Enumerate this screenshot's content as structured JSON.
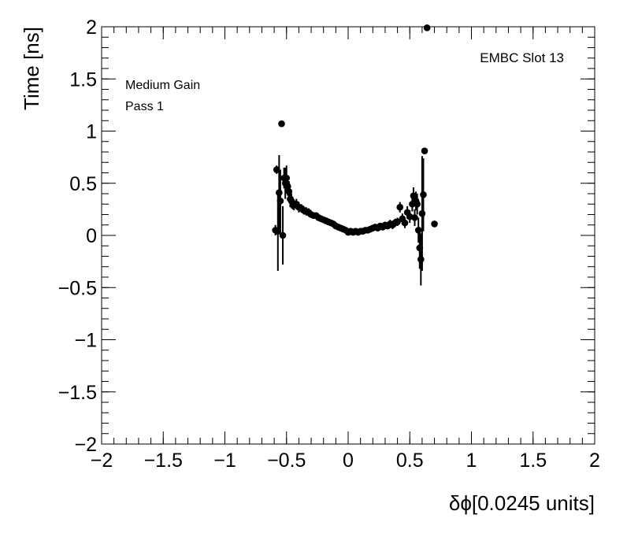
{
  "chart_data": {
    "type": "scatter",
    "title": "",
    "xlabel": "δϕ[0.0245 units]",
    "ylabel": "Time [ns]",
    "xlim": [
      -2,
      2
    ],
    "ylim": [
      -2,
      2
    ],
    "x_ticks": [
      -2,
      -1.5,
      -1,
      -0.5,
      0,
      0.5,
      1,
      1.5,
      2
    ],
    "y_ticks": [
      -2,
      -1.5,
      -1,
      -0.5,
      0,
      0.5,
      1,
      1.5,
      2
    ],
    "x_tick_labels": [
      "−2",
      "−1.5",
      "−1",
      "−0.5",
      "0",
      "0.5",
      "1",
      "1.5",
      "2"
    ],
    "y_tick_labels": [
      "−2",
      "−1.5",
      "−1",
      "−0.5",
      "0",
      "0.5",
      "1",
      "1.5",
      "2"
    ],
    "grid": false,
    "marker_color": "#000000",
    "annotations": {
      "gain": "Medium Gain",
      "pass": "Pass 1",
      "slot": "EMBC Slot 13"
    },
    "points": [
      {
        "x": -0.59,
        "y": 0.05,
        "err": 0.05
      },
      {
        "x": -0.58,
        "y": 0.63,
        "err": 0.04
      },
      {
        "x": -0.57,
        "y": 0.04,
        "err": 0.38
      },
      {
        "x": -0.56,
        "y": 0.41,
        "err": 0.36
      },
      {
        "x": -0.55,
        "y": 0.33,
        "err": 0.3
      },
      {
        "x": -0.54,
        "y": 1.07,
        "err": 0.03
      },
      {
        "x": -0.53,
        "y": 0.0,
        "err": 0.28
      },
      {
        "x": -0.52,
        "y": 0.55,
        "err": 0.1
      },
      {
        "x": -0.51,
        "y": 0.5,
        "err": 0.15
      },
      {
        "x": -0.5,
        "y": 0.55,
        "err": 0.12
      },
      {
        "x": -0.49,
        "y": 0.47,
        "err": 0.09
      },
      {
        "x": -0.48,
        "y": 0.42,
        "err": 0.1
      },
      {
        "x": -0.47,
        "y": 0.35,
        "err": 0.08
      },
      {
        "x": -0.46,
        "y": 0.33,
        "err": 0.07
      },
      {
        "x": -0.45,
        "y": 0.31,
        "err": 0.06
      },
      {
        "x": -0.44,
        "y": 0.29,
        "err": 0.05
      },
      {
        "x": -0.42,
        "y": 0.3,
        "err": 0.05
      },
      {
        "x": -0.4,
        "y": 0.27,
        "err": 0.05
      },
      {
        "x": -0.38,
        "y": 0.26,
        "err": 0.04
      },
      {
        "x": -0.36,
        "y": 0.24,
        "err": 0.04
      },
      {
        "x": -0.34,
        "y": 0.23,
        "err": 0.04
      },
      {
        "x": -0.32,
        "y": 0.22,
        "err": 0.04
      },
      {
        "x": -0.3,
        "y": 0.2,
        "err": 0.03
      },
      {
        "x": -0.28,
        "y": 0.19,
        "err": 0.03
      },
      {
        "x": -0.26,
        "y": 0.19,
        "err": 0.03
      },
      {
        "x": -0.24,
        "y": 0.17,
        "err": 0.03
      },
      {
        "x": -0.22,
        "y": 0.16,
        "err": 0.03
      },
      {
        "x": -0.2,
        "y": 0.15,
        "err": 0.03
      },
      {
        "x": -0.18,
        "y": 0.14,
        "err": 0.03
      },
      {
        "x": -0.16,
        "y": 0.13,
        "err": 0.03
      },
      {
        "x": -0.14,
        "y": 0.12,
        "err": 0.02
      },
      {
        "x": -0.12,
        "y": 0.11,
        "err": 0.02
      },
      {
        "x": -0.1,
        "y": 0.09,
        "err": 0.02
      },
      {
        "x": -0.08,
        "y": 0.08,
        "err": 0.02
      },
      {
        "x": -0.06,
        "y": 0.07,
        "err": 0.02
      },
      {
        "x": -0.04,
        "y": 0.06,
        "err": 0.02
      },
      {
        "x": -0.02,
        "y": 0.05,
        "err": 0.02
      },
      {
        "x": 0.0,
        "y": 0.03,
        "err": 0.02
      },
      {
        "x": 0.02,
        "y": 0.04,
        "err": 0.02
      },
      {
        "x": 0.04,
        "y": 0.03,
        "err": 0.02
      },
      {
        "x": 0.06,
        "y": 0.04,
        "err": 0.02
      },
      {
        "x": 0.08,
        "y": 0.03,
        "err": 0.02
      },
      {
        "x": 0.1,
        "y": 0.04,
        "err": 0.02
      },
      {
        "x": 0.12,
        "y": 0.04,
        "err": 0.02
      },
      {
        "x": 0.14,
        "y": 0.05,
        "err": 0.02
      },
      {
        "x": 0.16,
        "y": 0.05,
        "err": 0.02
      },
      {
        "x": 0.18,
        "y": 0.06,
        "err": 0.02
      },
      {
        "x": 0.2,
        "y": 0.07,
        "err": 0.03
      },
      {
        "x": 0.22,
        "y": 0.08,
        "err": 0.03
      },
      {
        "x": 0.24,
        "y": 0.07,
        "err": 0.03
      },
      {
        "x": 0.26,
        "y": 0.09,
        "err": 0.03
      },
      {
        "x": 0.28,
        "y": 0.08,
        "err": 0.03
      },
      {
        "x": 0.3,
        "y": 0.1,
        "err": 0.03
      },
      {
        "x": 0.32,
        "y": 0.09,
        "err": 0.03
      },
      {
        "x": 0.34,
        "y": 0.11,
        "err": 0.04
      },
      {
        "x": 0.36,
        "y": 0.1,
        "err": 0.04
      },
      {
        "x": 0.38,
        "y": 0.12,
        "err": 0.04
      },
      {
        "x": 0.4,
        "y": 0.13,
        "err": 0.04
      },
      {
        "x": 0.42,
        "y": 0.27,
        "err": 0.05
      },
      {
        "x": 0.44,
        "y": 0.16,
        "err": 0.05
      },
      {
        "x": 0.46,
        "y": 0.12,
        "err": 0.05
      },
      {
        "x": 0.48,
        "y": 0.22,
        "err": 0.06
      },
      {
        "x": 0.5,
        "y": 0.18,
        "err": 0.06
      },
      {
        "x": 0.52,
        "y": 0.3,
        "err": 0.07
      },
      {
        "x": 0.53,
        "y": 0.38,
        "err": 0.08
      },
      {
        "x": 0.54,
        "y": 0.17,
        "err": 0.08
      },
      {
        "x": 0.55,
        "y": 0.33,
        "err": 0.09
      },
      {
        "x": 0.56,
        "y": 0.3,
        "err": 0.1
      },
      {
        "x": 0.57,
        "y": 0.05,
        "err": 0.12
      },
      {
        "x": 0.58,
        "y": -0.12,
        "err": 0.2
      },
      {
        "x": 0.59,
        "y": -0.23,
        "err": 0.25
      },
      {
        "x": 0.6,
        "y": 0.21,
        "err": 0.55
      },
      {
        "x": 0.61,
        "y": 0.39,
        "err": 0.35
      },
      {
        "x": 0.62,
        "y": 0.81,
        "err": 0.03
      },
      {
        "x": 0.64,
        "y": 1.99,
        "err": 0.02
      },
      {
        "x": 0.7,
        "y": 0.11,
        "err": 0.02
      }
    ]
  }
}
